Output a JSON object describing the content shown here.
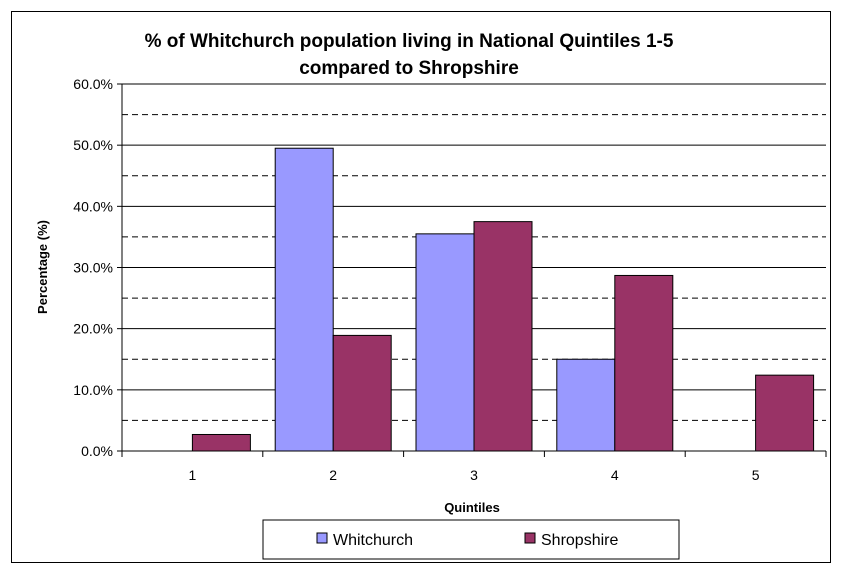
{
  "chart_data": {
    "type": "bar",
    "title_lines": [
      "% of Whitchurch population living in National Quintiles 1-5",
      "compared to Shropshire"
    ],
    "xlabel": "Quintiles",
    "ylabel": "Percentage (%)",
    "categories": [
      "1",
      "2",
      "3",
      "4",
      "5"
    ],
    "ylim": [
      0,
      60
    ],
    "y_tick_values": [
      0,
      10,
      20,
      30,
      40,
      50,
      60
    ],
    "y_tick_labels": [
      "0.0%",
      "10.0%",
      "20.0%",
      "30.0%",
      "40.0%",
      "50.0%",
      "60.0%"
    ],
    "major_gridlines": "solid",
    "minor_gridlines": "dashed",
    "legend_position": "bottom",
    "series": [
      {
        "name": "Whitchurch",
        "color": "#9999FF",
        "values": [
          0,
          49.5,
          35.5,
          15,
          0
        ]
      },
      {
        "name": "Shropshire",
        "color": "#993366",
        "values": [
          2.7,
          18.9,
          37.5,
          28.7,
          12.4
        ]
      }
    ]
  }
}
